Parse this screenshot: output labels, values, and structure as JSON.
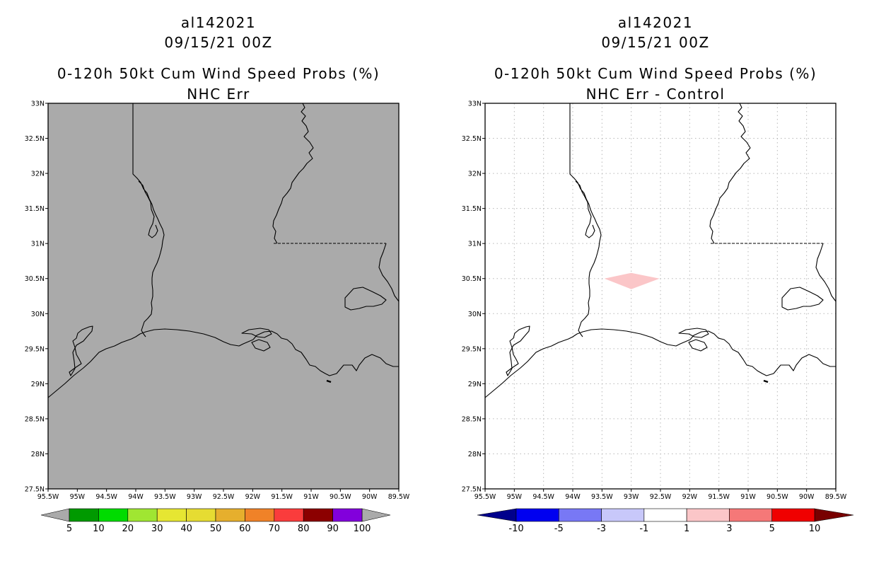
{
  "colors": {
    "background": "#ffffff",
    "no_data_fill": "#aaaaaa",
    "grid": "#b8b8b8",
    "line": "#000000",
    "diff_highlight": "#fbc6c8"
  },
  "axes": {
    "lon_labels": [
      "95.5W",
      "95W",
      "94.5W",
      "94W",
      "93.5W",
      "93W",
      "92.5W",
      "92W",
      "91.5W",
      "91W",
      "90.5W",
      "90W",
      "89.5W"
    ],
    "lat_labels": [
      "33N",
      "32.5N",
      "32N",
      "31.5N",
      "31N",
      "30.5N",
      "30N",
      "29.5N",
      "29N",
      "28.5N",
      "28N",
      "27.5N"
    ],
    "lon_range": [
      -95.5,
      -89.5
    ],
    "lat_range": [
      27.5,
      33.0
    ]
  },
  "left": {
    "title_line1": "al142021",
    "title_line2": "09/15/21 00Z",
    "title_line3": "0-120h 50kt Cum Wind Speed Probs (%)",
    "title_line4": "NHC Err",
    "colorbar": {
      "labels": [
        "5",
        "10",
        "20",
        "30",
        "40",
        "50",
        "60",
        "70",
        "80",
        "90",
        "100"
      ],
      "colors": [
        "#aaaaaa",
        "#009a00",
        "#00dc00",
        "#a0e632",
        "#e6e632",
        "#e6dc32",
        "#e6af2d",
        "#f08228",
        "#fa3c3c",
        "#8c0000",
        "#8200dc",
        "#aaaaaa"
      ]
    }
  },
  "right": {
    "title_line1": "al142021",
    "title_line2": "09/15/21 00Z",
    "title_line3": "0-120h 50kt Cum Wind Speed Probs (%)",
    "title_line4": "NHC Err - Control",
    "colorbar": {
      "labels": [
        "-10",
        "-5",
        "-3",
        "-1",
        "1",
        "3",
        "5",
        "10"
      ],
      "colors": [
        "#00008c",
        "#0000f0",
        "#7878f5",
        "#c8c8fa",
        "#ffffff",
        "#fbc6c8",
        "#f57878",
        "#f00000",
        "#780000"
      ]
    }
  }
}
